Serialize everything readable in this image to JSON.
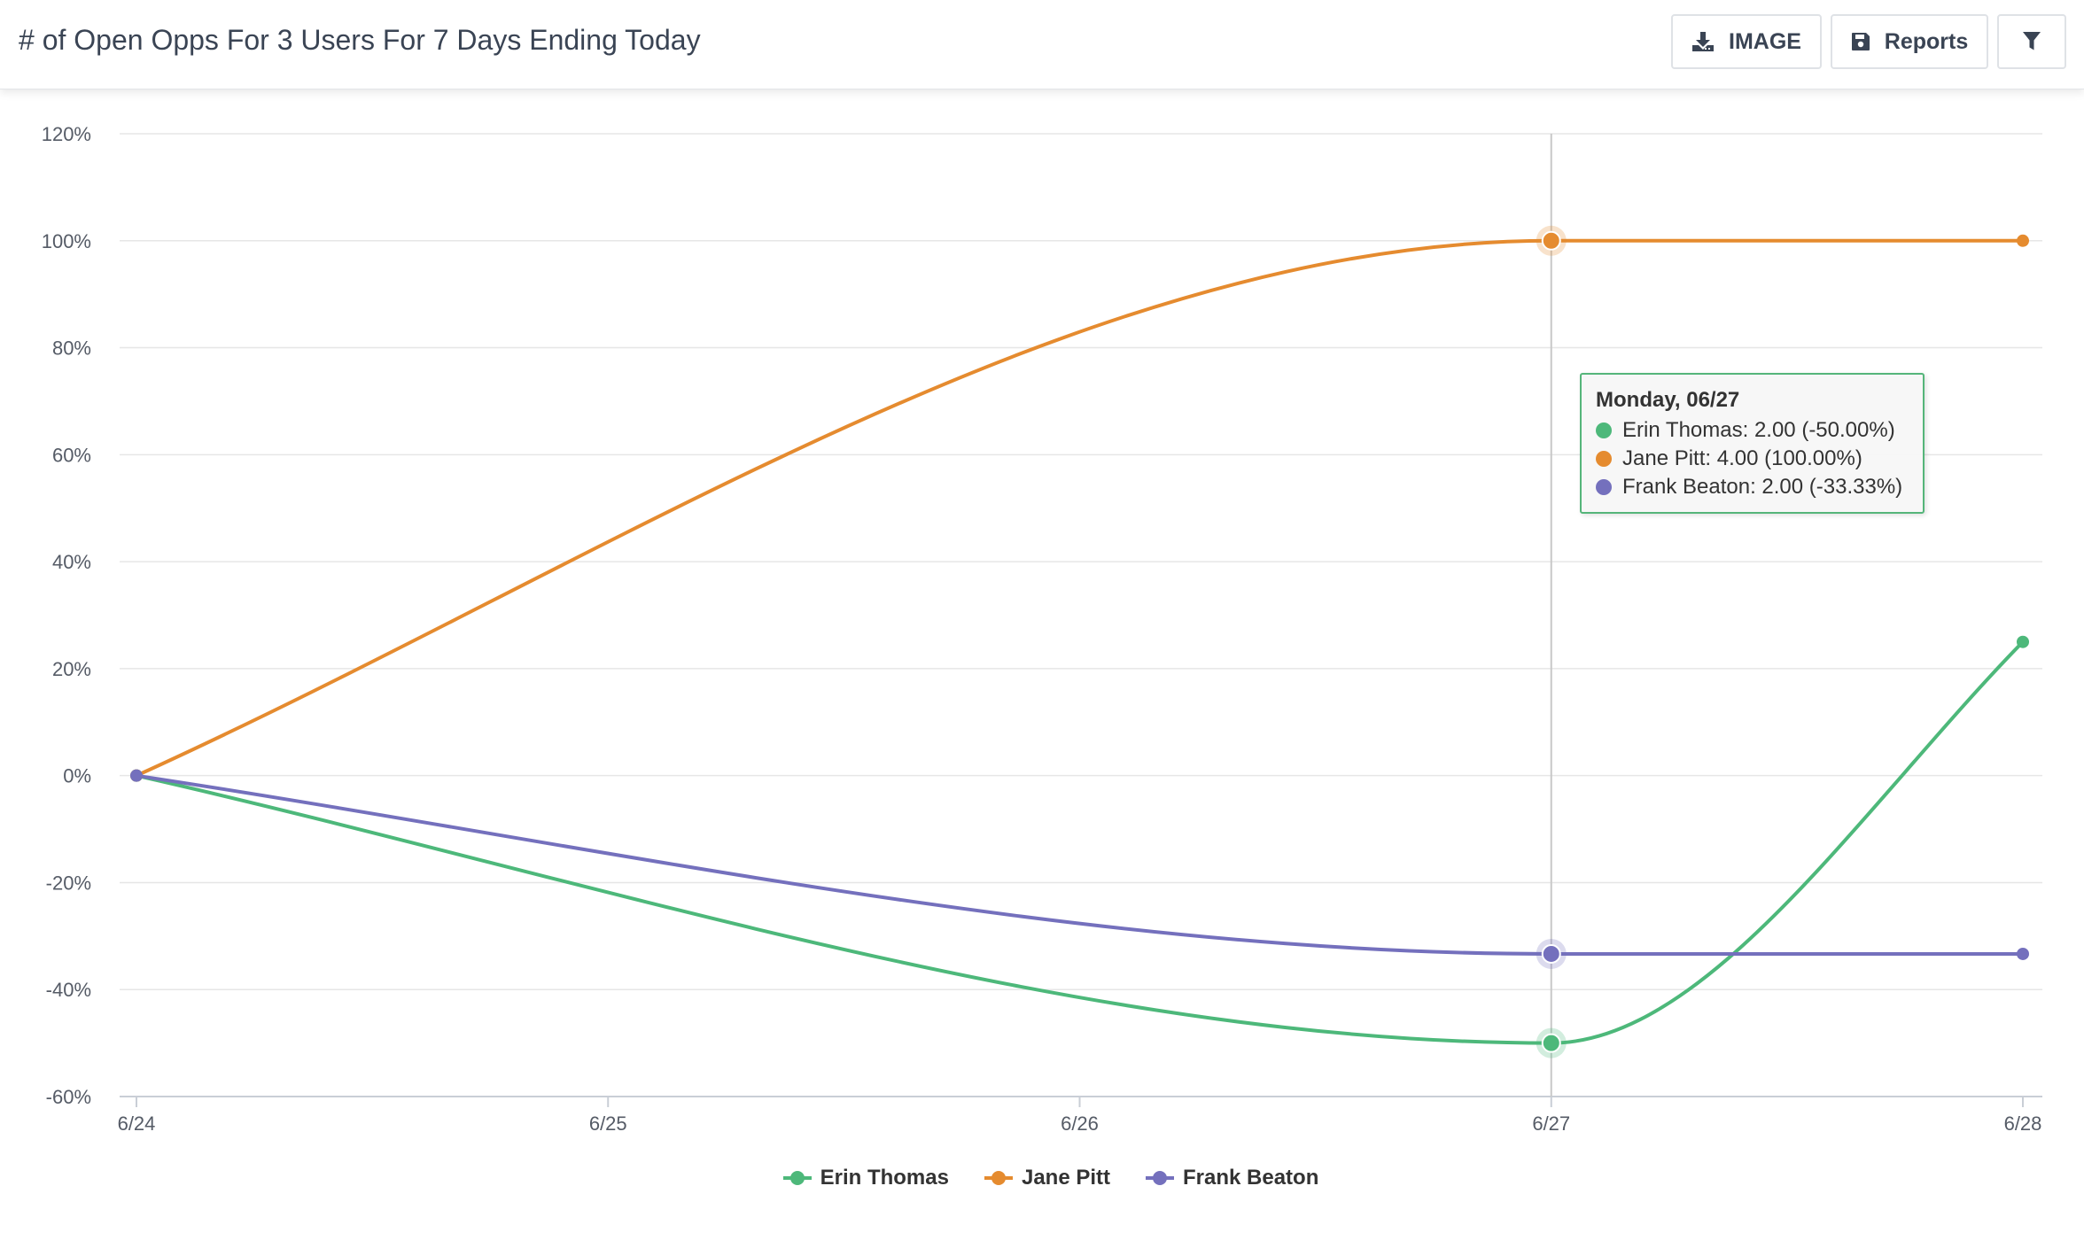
{
  "header": {
    "title": "# of Open Opps For 3 Users For 7 Days Ending Today",
    "buttons": {
      "image_label": "IMAGE",
      "reports_label": "Reports",
      "image_icon": "download-icon",
      "reports_icon": "save-icon",
      "filter_icon": "filter-icon"
    }
  },
  "chart_data": {
    "type": "line",
    "title": "# of Open Opps For 3 Users For 7 Days Ending Today",
    "xlabel": "",
    "ylabel": "",
    "categories": [
      "6/24",
      "6/25",
      "6/26",
      "6/27",
      "6/28"
    ],
    "y_ticks": [
      "120%",
      "100%",
      "80%",
      "60%",
      "40%",
      "20%",
      "0%",
      "-20%",
      "-40%",
      "-60%"
    ],
    "ylim": [
      -60,
      120
    ],
    "y_unit": "%",
    "grid": true,
    "legend_position": "bottom-center",
    "highlight_category": "6/27",
    "series": [
      {
        "name": "Erin Thomas",
        "color": "#4db87a",
        "values": [
          0,
          null,
          null,
          -50,
          25
        ]
      },
      {
        "name": "Jane Pitt",
        "color": "#e58b2f",
        "values": [
          0,
          null,
          null,
          100,
          100
        ]
      },
      {
        "name": "Frank Beaton",
        "color": "#7470bd",
        "values": [
          0,
          null,
          null,
          -33.33,
          -33.33
        ]
      }
    ]
  },
  "tooltip": {
    "header": "Monday, 06/27",
    "rows": [
      {
        "text": "Erin Thomas: 2.00 (-50.00%)",
        "color": "#4db87a"
      },
      {
        "text": "Jane Pitt: 4.00 (100.00%)",
        "color": "#e58b2f"
      },
      {
        "text": "Frank Beaton: 2.00 (-33.33%)",
        "color": "#7470bd"
      }
    ]
  },
  "legend": {
    "items": [
      {
        "label": "Erin Thomas",
        "color": "#4db87a"
      },
      {
        "label": "Jane Pitt",
        "color": "#e58b2f"
      },
      {
        "label": "Frank Beaton",
        "color": "#7470bd"
      }
    ]
  }
}
